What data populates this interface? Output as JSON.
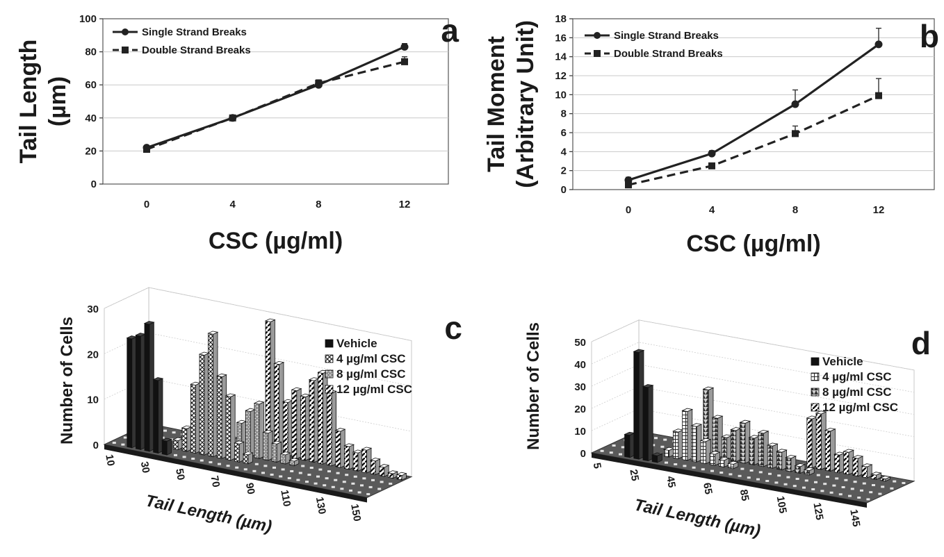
{
  "chart_data": [
    {
      "panel": "a",
      "type": "line",
      "panel_label": "a",
      "xlabel": "CSC (µg/ml)",
      "ylabel": [
        "Tail Length",
        "(µm)"
      ],
      "x": [
        0,
        4,
        8,
        12
      ],
      "x_ticks": [
        "0",
        "4",
        "8",
        "12"
      ],
      "ylim": [
        0,
        100
      ],
      "y_ticks": [
        "0",
        "20",
        "40",
        "60",
        "80",
        "100"
      ],
      "y_tick_values": [
        0,
        20,
        40,
        60,
        80,
        100
      ],
      "grid": true,
      "legend": "top-left",
      "series": [
        {
          "name": "Single Strand Breaks",
          "values": [
            22,
            40,
            60,
            83
          ],
          "errors": [
            0,
            0,
            3,
            2
          ],
          "style": "solid",
          "marker": "circle"
        },
        {
          "name": "Double Strand Breaks",
          "values": [
            21,
            40,
            61,
            74
          ],
          "errors": [
            0,
            0,
            2,
            3
          ],
          "style": "dashed",
          "marker": "square"
        }
      ]
    },
    {
      "panel": "b",
      "type": "line",
      "panel_label": "b",
      "xlabel": "CSC (µg/ml)",
      "ylabel": [
        "Tail Moment",
        "(Arbitrary Unit)"
      ],
      "x": [
        0,
        4,
        8,
        12
      ],
      "x_ticks": [
        "0",
        "4",
        "8",
        "12"
      ],
      "ylim": [
        0,
        18
      ],
      "y_ticks": [
        "0",
        "2",
        "4",
        "6",
        "8",
        "10",
        "12",
        "14",
        "16",
        "18"
      ],
      "y_tick_values": [
        0,
        2,
        4,
        6,
        8,
        10,
        12,
        14,
        16,
        18
      ],
      "grid": true,
      "legend": "top-left",
      "series": [
        {
          "name": "Single Strand Breaks",
          "values": [
            1.0,
            3.8,
            9.0,
            15.3
          ],
          "errors": [
            0.3,
            0.3,
            1.5,
            1.7
          ],
          "style": "solid",
          "marker": "circle"
        },
        {
          "name": "Double Strand Breaks",
          "values": [
            0.5,
            2.5,
            5.9,
            9.9
          ],
          "errors": [
            0.2,
            0.3,
            0.8,
            1.8
          ],
          "style": "dashed",
          "marker": "square"
        }
      ]
    },
    {
      "panel": "c",
      "type": "bar",
      "panel_label": "c",
      "xlabel": "Tail Length (µm)",
      "ylabel": "Number of Cells",
      "ylim": [
        0,
        30
      ],
      "y_ticks": [
        "0",
        "10",
        "20",
        "30"
      ],
      "y_tick_values": [
        0,
        10,
        20,
        30
      ],
      "x_ticks": [
        "10",
        "30",
        "50",
        "70",
        "90",
        "110",
        "130",
        "150"
      ],
      "x_tick_values": [
        10,
        30,
        50,
        70,
        90,
        110,
        130,
        150
      ],
      "x": [
        10,
        15,
        20,
        25,
        30,
        35,
        40,
        45,
        50,
        55,
        60,
        65,
        70,
        75,
        80,
        85,
        90,
        95,
        100,
        105,
        110,
        115,
        120,
        125,
        130,
        135,
        140,
        145,
        150,
        155
      ],
      "legend": "top-right",
      "series": [
        {
          "name": "Vehicle",
          "fill": "#111111",
          "pattern": "solid",
          "values": [
            0,
            0,
            24,
            25,
            28,
            16,
            3,
            0,
            0,
            0,
            0,
            0,
            0,
            0,
            0,
            0,
            0,
            0,
            0,
            0,
            0,
            0,
            0,
            0,
            0,
            0,
            0,
            0,
            0,
            0
          ]
        },
        {
          "name": "4 µg/ml CSC",
          "fill": "#d8d8d8",
          "pattern": "cross",
          "values": [
            0,
            0,
            0,
            0,
            0,
            0,
            2,
            5,
            15,
            22,
            27,
            18,
            14,
            4,
            2,
            0,
            0,
            0,
            0,
            0,
            0,
            0,
            0,
            0,
            0,
            0,
            0,
            0,
            0,
            0
          ]
        },
        {
          "name": "8 µg/ml CSC",
          "fill": "#ffffff",
          "pattern": "dots",
          "values": [
            0,
            0,
            0,
            0,
            0,
            0,
            0,
            0,
            0,
            0,
            0,
            3,
            7,
            10,
            12,
            6,
            4,
            2,
            1,
            0,
            0,
            0,
            0,
            0,
            0,
            0,
            0,
            0,
            0,
            0
          ]
        },
        {
          "name": "12 µg/ml CSC",
          "fill": "#f2f2f2",
          "pattern": "diagonal",
          "values": [
            0,
            0,
            0,
            0,
            0,
            0,
            0,
            0,
            0,
            0,
            0,
            0,
            0,
            0,
            29,
            20,
            12,
            15,
            14,
            18,
            20,
            16,
            8,
            5,
            4,
            5,
            3,
            2,
            1,
            1
          ]
        }
      ]
    },
    {
      "panel": "d",
      "type": "bar",
      "panel_label": "d",
      "xlabel": "Tail Length (µm)",
      "ylabel": "Number of Cells",
      "ylim": [
        0,
        50
      ],
      "y_ticks": [
        "0",
        "10",
        "20",
        "30",
        "40",
        "50"
      ],
      "y_tick_values": [
        0,
        10,
        20,
        30,
        40,
        50
      ],
      "x_ticks": [
        "5",
        "25",
        "45",
        "65",
        "85",
        "105",
        "125",
        "145"
      ],
      "x_tick_values": [
        5,
        25,
        45,
        65,
        85,
        105,
        125,
        145
      ],
      "x": [
        5,
        10,
        15,
        20,
        25,
        30,
        35,
        40,
        45,
        50,
        55,
        60,
        65,
        70,
        75,
        80,
        85,
        90,
        95,
        100,
        105,
        110,
        115,
        120,
        125,
        130,
        135,
        140,
        145,
        150
      ],
      "legend": "top-right",
      "series": [
        {
          "name": "Vehicle",
          "fill": "#111111",
          "pattern": "solid",
          "values": [
            0,
            0,
            0,
            10,
            48,
            33,
            3,
            0,
            0,
            0,
            0,
            0,
            0,
            0,
            0,
            0,
            0,
            0,
            0,
            0,
            0,
            0,
            0,
            0,
            0,
            0,
            0,
            0,
            0,
            0
          ]
        },
        {
          "name": "4 µg/ml CSC",
          "fill": "#ffffff",
          "pattern": "grid",
          "values": [
            0,
            0,
            0,
            0,
            0,
            0,
            3,
            12,
            22,
            16,
            10,
            5,
            3,
            2,
            0,
            0,
            0,
            0,
            0,
            0,
            0,
            0,
            0,
            0,
            0,
            0,
            0,
            0,
            0,
            0
          ]
        },
        {
          "name": "8 µg/ml CSC",
          "fill": "#bfbfbf",
          "pattern": "triangles",
          "values": [
            0,
            0,
            0,
            0,
            0,
            0,
            0,
            0,
            0,
            30,
            18,
            10,
            14,
            18,
            12,
            15,
            10,
            8,
            6,
            3,
            2,
            0,
            0,
            0,
            0,
            0,
            0,
            0,
            0,
            0
          ]
        },
        {
          "name": "12 µg/ml CSC",
          "fill": "#f2f2f2",
          "pattern": "diagonal",
          "values": [
            0,
            0,
            0,
            0,
            0,
            0,
            0,
            0,
            0,
            0,
            0,
            0,
            0,
            0,
            0,
            0,
            0,
            0,
            0,
            22,
            25,
            18,
            8,
            10,
            8,
            5,
            2,
            1,
            0,
            0
          ]
        }
      ]
    }
  ]
}
